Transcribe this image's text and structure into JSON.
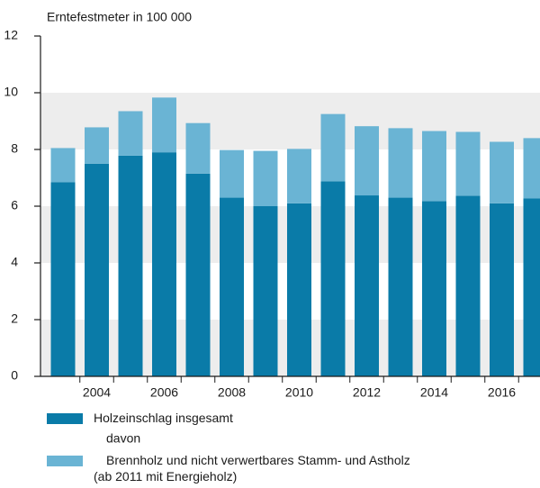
{
  "chart_data": {
    "type": "stacked_bar",
    "y_axis_label": "Erntefestmeter in 100 000",
    "categories": [
      null,
      "2004",
      null,
      "2006",
      null,
      "2008",
      null,
      "2010",
      null,
      "2012",
      null,
      "2014",
      null,
      "2016",
      null
    ],
    "series": [
      {
        "name": "Holzeinschlag insgesamt",
        "color": "#0a7ba8",
        "values": [
          6.85,
          7.5,
          7.78,
          7.9,
          7.15,
          6.3,
          6.0,
          6.1,
          6.88,
          6.38,
          6.3,
          6.18,
          6.37,
          6.1,
          6.27
        ]
      },
      {
        "name": "Brennholz und nicht verwertbares Stamm- und Astholz\n(ab 2011 mit Energieholz)",
        "color": "#6ab4d4",
        "values": [
          1.2,
          1.28,
          1.57,
          1.93,
          1.78,
          1.68,
          1.95,
          1.92,
          2.37,
          2.44,
          2.45,
          2.47,
          2.25,
          2.17,
          2.13
        ]
      }
    ],
    "legend_note": "davon",
    "ylim": [
      0,
      12
    ],
    "yticks": [
      0,
      2,
      4,
      6,
      8,
      10,
      12
    ],
    "grid": true
  }
}
